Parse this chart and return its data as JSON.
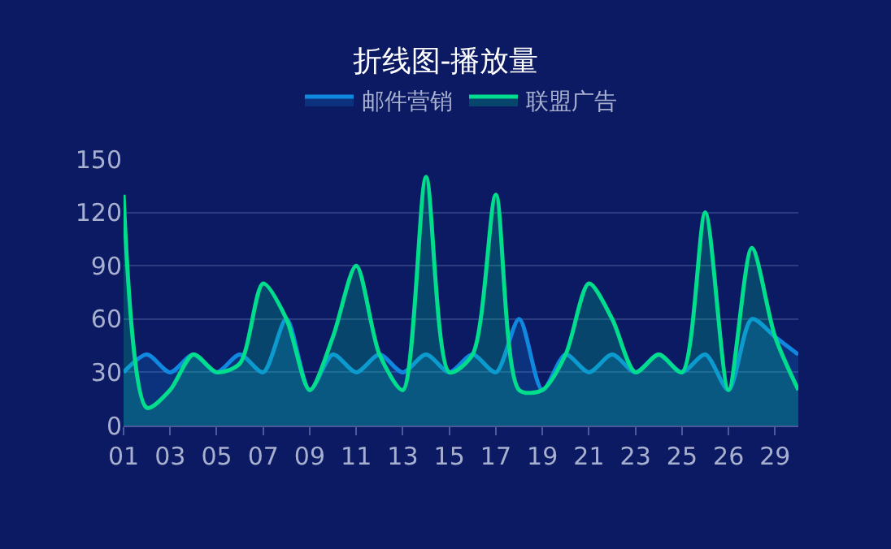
{
  "chart_data": {
    "type": "area",
    "title": "折线图-播放量",
    "categories": [
      "01",
      null,
      "03",
      null,
      "05",
      null,
      "07",
      null,
      "09",
      null,
      "11",
      null,
      "13",
      null,
      "15",
      null,
      "17",
      null,
      "19",
      null,
      "21",
      null,
      "23",
      null,
      "25",
      null,
      "26",
      null,
      "29",
      null
    ],
    "series": [
      {
        "name": "邮件营销",
        "color": "#1088e0",
        "values": [
          30,
          40,
          30,
          40,
          30,
          40,
          30,
          60,
          20,
          40,
          30,
          40,
          30,
          40,
          30,
          40,
          30,
          60,
          20,
          40,
          30,
          40,
          30,
          40,
          30,
          40,
          20,
          60,
          50,
          40
        ]
      },
      {
        "name": "联盟广告",
        "color": "#00dd8c",
        "values": [
          130,
          10,
          20,
          40,
          30,
          35,
          80,
          60,
          20,
          50,
          90,
          40,
          20,
          140,
          30,
          40,
          130,
          20,
          20,
          40,
          80,
          60,
          30,
          40,
          30,
          120,
          20,
          100,
          50,
          20
        ]
      }
    ],
    "ylim": [
      0,
      150
    ],
    "yticks": [
      0,
      30,
      60,
      90,
      120,
      150
    ],
    "grid": "y",
    "legend": "top",
    "marker": "none",
    "line_style": "solid"
  }
}
